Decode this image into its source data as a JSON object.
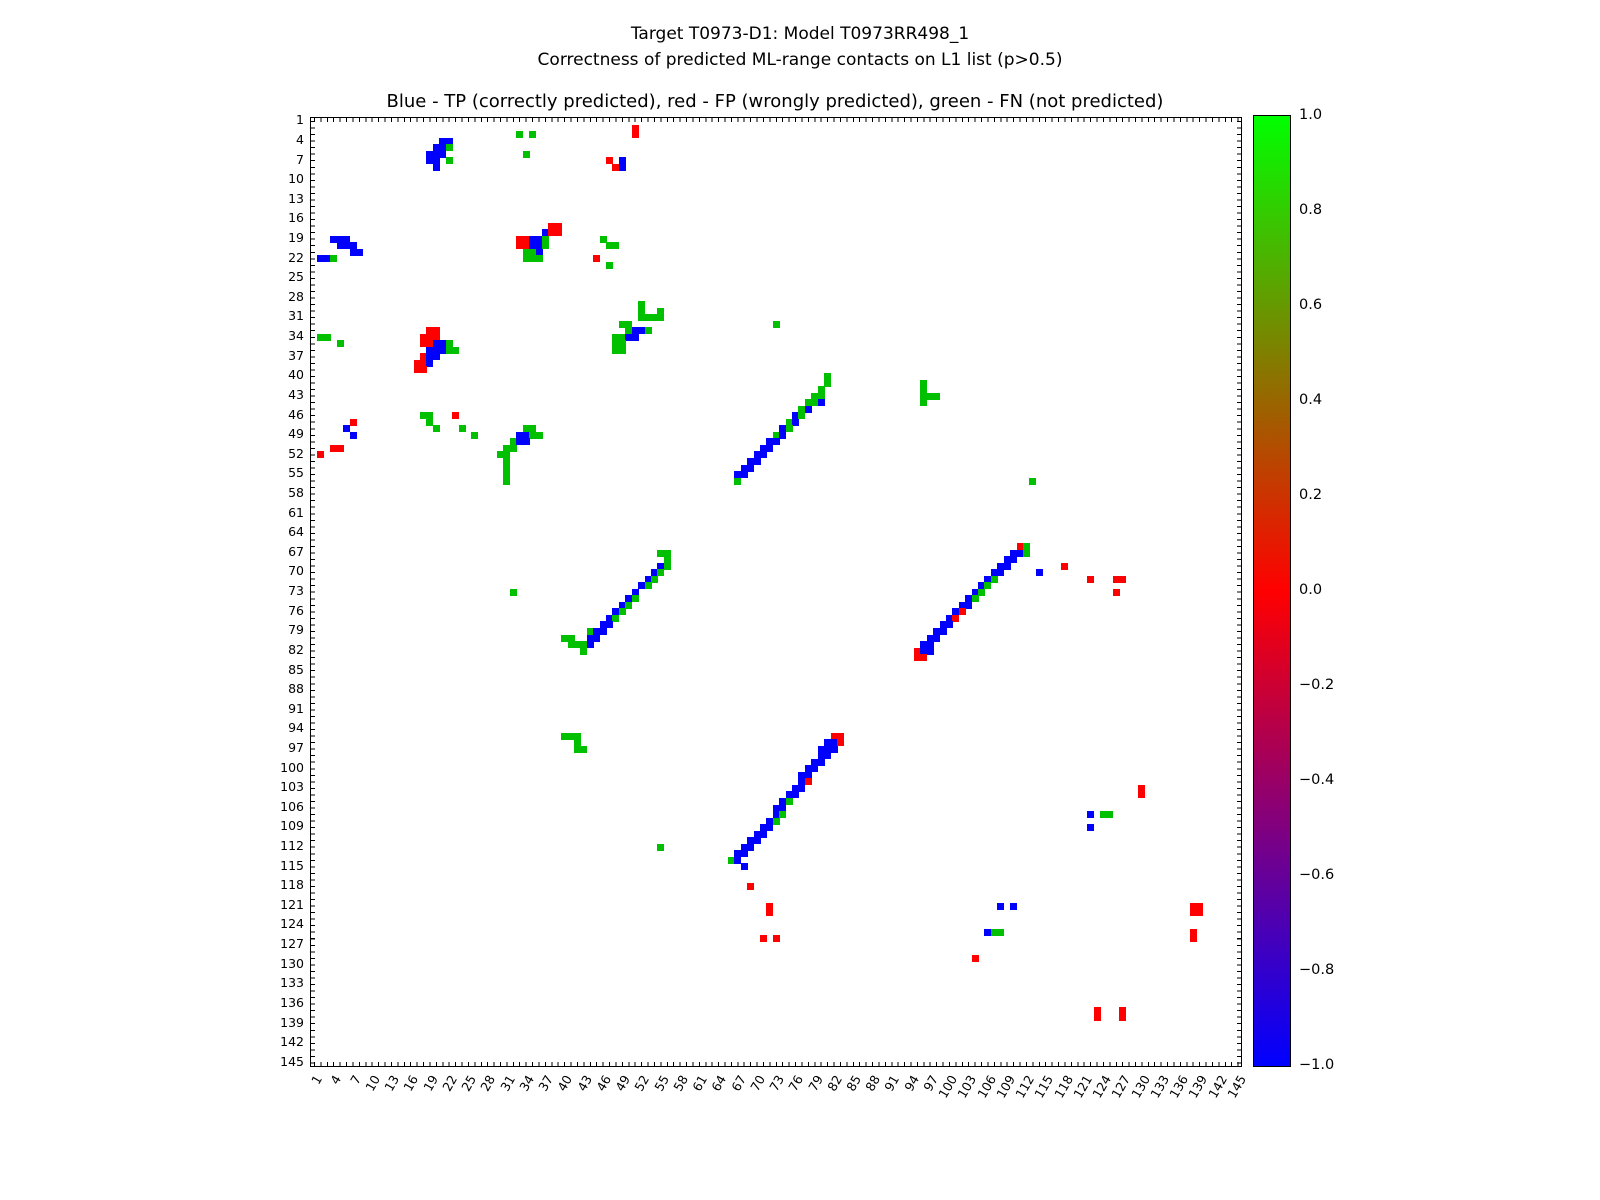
{
  "figure": {
    "suptitle_line1": "Target T0973-D1: Model T0973RR498_1",
    "suptitle_line2": "Correctness of predicted ML-range contacts on L1 list (p>0.5)"
  },
  "chart_data": {
    "type": "heatmap",
    "title": "Blue - TP (correctly predicted), red - FP (wrongly predicted), green - FN (not predicted)",
    "xlabel": "",
    "ylabel": "",
    "x_range": [
      1,
      145
    ],
    "y_range": [
      1,
      145
    ],
    "tick_step": 3,
    "tick_labels": [
      1,
      4,
      7,
      10,
      13,
      16,
      19,
      22,
      25,
      28,
      31,
      34,
      37,
      40,
      43,
      46,
      49,
      52,
      55,
      58,
      61,
      64,
      67,
      70,
      73,
      76,
      79,
      82,
      85,
      88,
      91,
      94,
      97,
      100,
      103,
      106,
      109,
      112,
      115,
      118,
      121,
      124,
      127,
      130,
      133,
      136,
      139,
      142,
      145
    ],
    "grid": false,
    "legend_position": "title",
    "classes": {
      "TP": {
        "label": "correctly predicted",
        "color": "#0000ff"
      },
      "FP": {
        "label": "wrongly predicted",
        "color": "#ff0000"
      },
      "FN": {
        "label": "not predicted",
        "color": "#00c000"
      }
    },
    "colorbar": {
      "min": -1.0,
      "max": 1.0,
      "tick_values": [
        1.0,
        0.8,
        0.6,
        0.4,
        0.2,
        0.0,
        -0.2,
        -0.4,
        -0.6,
        -0.8,
        -1.0
      ],
      "tick_labels": [
        "1.0",
        "0.8",
        "0.6",
        "0.4",
        "0.2",
        "0.0",
        "−0.2",
        "−0.4",
        "−0.6",
        "−0.8",
        "−1.0"
      ],
      "gradient": [
        "#00ff00",
        "#ff0000",
        "#0000ff"
      ]
    },
    "cells": [
      [
        2,
        51,
        "FP"
      ],
      [
        3,
        51,
        "FP"
      ],
      [
        3,
        33,
        "FN"
      ],
      [
        3,
        35,
        "FN"
      ],
      [
        4,
        21,
        "TP"
      ],
      [
        4,
        22,
        "TP"
      ],
      [
        5,
        20,
        "TP"
      ],
      [
        5,
        21,
        "TP"
      ],
      [
        5,
        22,
        "FN"
      ],
      [
        6,
        19,
        "TP"
      ],
      [
        6,
        20,
        "TP"
      ],
      [
        6,
        21,
        "TP"
      ],
      [
        6,
        34,
        "FN"
      ],
      [
        7,
        19,
        "TP"
      ],
      [
        7,
        20,
        "TP"
      ],
      [
        7,
        22,
        "FN"
      ],
      [
        7,
        47,
        "FP"
      ],
      [
        7,
        49,
        "TP"
      ],
      [
        8,
        20,
        "TP"
      ],
      [
        8,
        48,
        "FP"
      ],
      [
        8,
        49,
        "TP"
      ],
      [
        17,
        38,
        "FP"
      ],
      [
        17,
        39,
        "FP"
      ],
      [
        18,
        37,
        "TP"
      ],
      [
        18,
        38,
        "FP"
      ],
      [
        18,
        39,
        "FP"
      ],
      [
        19,
        4,
        "TP"
      ],
      [
        19,
        5,
        "TP"
      ],
      [
        19,
        6,
        "TP"
      ],
      [
        19,
        33,
        "FP"
      ],
      [
        19,
        34,
        "FP"
      ],
      [
        19,
        35,
        "TP"
      ],
      [
        19,
        36,
        "TP"
      ],
      [
        19,
        37,
        "FN"
      ],
      [
        19,
        46,
        "FN"
      ],
      [
        20,
        5,
        "TP"
      ],
      [
        20,
        6,
        "TP"
      ],
      [
        20,
        7,
        "TP"
      ],
      [
        20,
        33,
        "FP"
      ],
      [
        20,
        34,
        "FP"
      ],
      [
        20,
        35,
        "TP"
      ],
      [
        20,
        36,
        "TP"
      ],
      [
        20,
        37,
        "FN"
      ],
      [
        20,
        47,
        "FN"
      ],
      [
        20,
        48,
        "FN"
      ],
      [
        21,
        7,
        "TP"
      ],
      [
        21,
        8,
        "TP"
      ],
      [
        21,
        34,
        "FN"
      ],
      [
        21,
        35,
        "FN"
      ],
      [
        21,
        36,
        "TP"
      ],
      [
        22,
        2,
        "TP"
      ],
      [
        22,
        3,
        "TP"
      ],
      [
        22,
        4,
        "FN"
      ],
      [
        22,
        34,
        "FN"
      ],
      [
        22,
        35,
        "FN"
      ],
      [
        22,
        36,
        "FN"
      ],
      [
        22,
        45,
        "FP"
      ],
      [
        23,
        47,
        "FN"
      ],
      [
        29,
        52,
        "FN"
      ],
      [
        30,
        52,
        "FN"
      ],
      [
        30,
        55,
        "FN"
      ],
      [
        31,
        52,
        "FN"
      ],
      [
        31,
        53,
        "FN"
      ],
      [
        31,
        54,
        "FN"
      ],
      [
        31,
        55,
        "FN"
      ],
      [
        32,
        49,
        "FN"
      ],
      [
        32,
        50,
        "FN"
      ],
      [
        32,
        73,
        "FN"
      ],
      [
        33,
        19,
        "FP"
      ],
      [
        33,
        20,
        "FP"
      ],
      [
        33,
        50,
        "FN"
      ],
      [
        33,
        51,
        "TP"
      ],
      [
        33,
        52,
        "TP"
      ],
      [
        33,
        53,
        "FN"
      ],
      [
        34,
        2,
        "FN"
      ],
      [
        34,
        3,
        "FN"
      ],
      [
        34,
        18,
        "FP"
      ],
      [
        34,
        19,
        "FP"
      ],
      [
        34,
        20,
        "FP"
      ],
      [
        34,
        48,
        "FN"
      ],
      [
        34,
        49,
        "FN"
      ],
      [
        34,
        50,
        "TP"
      ],
      [
        34,
        51,
        "TP"
      ],
      [
        35,
        5,
        "FN"
      ],
      [
        35,
        18,
        "FP"
      ],
      [
        35,
        19,
        "FP"
      ],
      [
        35,
        20,
        "TP"
      ],
      [
        35,
        21,
        "TP"
      ],
      [
        35,
        22,
        "FN"
      ],
      [
        35,
        48,
        "FN"
      ],
      [
        35,
        49,
        "FN"
      ],
      [
        36,
        19,
        "TP"
      ],
      [
        36,
        20,
        "TP"
      ],
      [
        36,
        21,
        "TP"
      ],
      [
        36,
        22,
        "FN"
      ],
      [
        36,
        23,
        "FN"
      ],
      [
        36,
        48,
        "FN"
      ],
      [
        36,
        49,
        "FN"
      ],
      [
        37,
        18,
        "FP"
      ],
      [
        37,
        19,
        "TP"
      ],
      [
        37,
        20,
        "TP"
      ],
      [
        38,
        17,
        "FP"
      ],
      [
        38,
        18,
        "FP"
      ],
      [
        38,
        19,
        "TP"
      ],
      [
        39,
        17,
        "FP"
      ],
      [
        39,
        18,
        "FP"
      ],
      [
        40,
        81,
        "FN"
      ],
      [
        41,
        81,
        "FN"
      ],
      [
        41,
        96,
        "FN"
      ],
      [
        42,
        80,
        "FN"
      ],
      [
        42,
        96,
        "FN"
      ],
      [
        43,
        79,
        "FN"
      ],
      [
        43,
        80,
        "FN"
      ],
      [
        43,
        96,
        "FN"
      ],
      [
        43,
        97,
        "FN"
      ],
      [
        43,
        98,
        "FN"
      ],
      [
        44,
        78,
        "FN"
      ],
      [
        44,
        79,
        "FN"
      ],
      [
        44,
        80,
        "TP"
      ],
      [
        44,
        96,
        "FN"
      ],
      [
        45,
        77,
        "FN"
      ],
      [
        45,
        78,
        "TP"
      ],
      [
        46,
        18,
        "FN"
      ],
      [
        46,
        19,
        "FN"
      ],
      [
        46,
        23,
        "FP"
      ],
      [
        46,
        76,
        "TP"
      ],
      [
        46,
        77,
        "FN"
      ],
      [
        47,
        7,
        "FP"
      ],
      [
        47,
        19,
        "FN"
      ],
      [
        47,
        75,
        "FN"
      ],
      [
        47,
        76,
        "TP"
      ],
      [
        48,
        6,
        "TP"
      ],
      [
        48,
        20,
        "FN"
      ],
      [
        48,
        24,
        "FN"
      ],
      [
        48,
        34,
        "FN"
      ],
      [
        48,
        35,
        "FN"
      ],
      [
        48,
        74,
        "TP"
      ],
      [
        48,
        75,
        "FN"
      ],
      [
        49,
        7,
        "TP"
      ],
      [
        49,
        26,
        "FN"
      ],
      [
        49,
        33,
        "TP"
      ],
      [
        49,
        34,
        "TP"
      ],
      [
        49,
        35,
        "FN"
      ],
      [
        49,
        36,
        "FN"
      ],
      [
        49,
        73,
        "FN"
      ],
      [
        49,
        74,
        "TP"
      ],
      [
        50,
        32,
        "FN"
      ],
      [
        50,
        33,
        "TP"
      ],
      [
        50,
        34,
        "TP"
      ],
      [
        50,
        72,
        "TP"
      ],
      [
        50,
        73,
        "TP"
      ],
      [
        51,
        4,
        "FP"
      ],
      [
        51,
        5,
        "FP"
      ],
      [
        51,
        31,
        "FN"
      ],
      [
        51,
        32,
        "FN"
      ],
      [
        51,
        71,
        "TP"
      ],
      [
        51,
        72,
        "TP"
      ],
      [
        52,
        2,
        "FP"
      ],
      [
        52,
        30,
        "FN"
      ],
      [
        52,
        31,
        "FN"
      ],
      [
        52,
        70,
        "TP"
      ],
      [
        52,
        71,
        "TP"
      ],
      [
        53,
        31,
        "FN"
      ],
      [
        53,
        69,
        "TP"
      ],
      [
        53,
        70,
        "TP"
      ],
      [
        54,
        31,
        "FN"
      ],
      [
        54,
        68,
        "TP"
      ],
      [
        54,
        69,
        "TP"
      ],
      [
        55,
        31,
        "FN"
      ],
      [
        55,
        67,
        "TP"
      ],
      [
        55,
        68,
        "TP"
      ],
      [
        56,
        31,
        "FN"
      ],
      [
        56,
        67,
        "FN"
      ],
      [
        56,
        113,
        "FN"
      ],
      [
        66,
        111,
        "FP"
      ],
      [
        66,
        112,
        "FN"
      ],
      [
        67,
        55,
        "FN"
      ],
      [
        67,
        56,
        "FN"
      ],
      [
        67,
        110,
        "TP"
      ],
      [
        67,
        111,
        "TP"
      ],
      [
        67,
        112,
        "FN"
      ],
      [
        68,
        56,
        "FN"
      ],
      [
        68,
        109,
        "TP"
      ],
      [
        68,
        110,
        "TP"
      ],
      [
        69,
        55,
        "TP"
      ],
      [
        69,
        56,
        "FN"
      ],
      [
        69,
        108,
        "TP"
      ],
      [
        69,
        109,
        "TP"
      ],
      [
        69,
        118,
        "FP"
      ],
      [
        70,
        54,
        "TP"
      ],
      [
        70,
        55,
        "FN"
      ],
      [
        70,
        107,
        "TP"
      ],
      [
        70,
        108,
        "TP"
      ],
      [
        70,
        114,
        "TP"
      ],
      [
        71,
        53,
        "TP"
      ],
      [
        71,
        54,
        "FN"
      ],
      [
        71,
        106,
        "TP"
      ],
      [
        71,
        107,
        "FN"
      ],
      [
        71,
        122,
        "FP"
      ],
      [
        71,
        126,
        "FP"
      ],
      [
        71,
        127,
        "FP"
      ],
      [
        72,
        52,
        "TP"
      ],
      [
        72,
        53,
        "FN"
      ],
      [
        72,
        105,
        "TP"
      ],
      [
        72,
        106,
        "FN"
      ],
      [
        73,
        32,
        "FN"
      ],
      [
        73,
        51,
        "TP"
      ],
      [
        73,
        104,
        "TP"
      ],
      [
        73,
        105,
        "FN"
      ],
      [
        73,
        126,
        "FP"
      ],
      [
        74,
        50,
        "TP"
      ],
      [
        74,
        51,
        "FN"
      ],
      [
        74,
        103,
        "TP"
      ],
      [
        74,
        104,
        "FN"
      ],
      [
        75,
        49,
        "TP"
      ],
      [
        75,
        50,
        "FN"
      ],
      [
        75,
        102,
        "TP"
      ],
      [
        75,
        103,
        "TP"
      ],
      [
        76,
        48,
        "TP"
      ],
      [
        76,
        49,
        "FN"
      ],
      [
        76,
        101,
        "TP"
      ],
      [
        76,
        102,
        "FP"
      ],
      [
        77,
        47,
        "TP"
      ],
      [
        77,
        48,
        "FN"
      ],
      [
        77,
        100,
        "TP"
      ],
      [
        77,
        101,
        "FP"
      ],
      [
        78,
        46,
        "TP"
      ],
      [
        78,
        47,
        "TP"
      ],
      [
        78,
        99,
        "TP"
      ],
      [
        78,
        100,
        "TP"
      ],
      [
        79,
        44,
        "FN"
      ],
      [
        79,
        45,
        "TP"
      ],
      [
        79,
        46,
        "TP"
      ],
      [
        79,
        98,
        "TP"
      ],
      [
        79,
        99,
        "TP"
      ],
      [
        80,
        40,
        "FN"
      ],
      [
        80,
        41,
        "FN"
      ],
      [
        80,
        44,
        "TP"
      ],
      [
        80,
        45,
        "TP"
      ],
      [
        80,
        97,
        "TP"
      ],
      [
        80,
        98,
        "TP"
      ],
      [
        81,
        41,
        "FN"
      ],
      [
        81,
        42,
        "FN"
      ],
      [
        81,
        43,
        "FN"
      ],
      [
        81,
        44,
        "TP"
      ],
      [
        81,
        96,
        "TP"
      ],
      [
        81,
        97,
        "TP"
      ],
      [
        82,
        43,
        "FN"
      ],
      [
        82,
        95,
        "FP"
      ],
      [
        82,
        96,
        "TP"
      ],
      [
        82,
        97,
        "TP"
      ],
      [
        83,
        95,
        "FP"
      ],
      [
        83,
        96,
        "FP"
      ],
      [
        95,
        40,
        "FN"
      ],
      [
        95,
        41,
        "FN"
      ],
      [
        95,
        42,
        "FN"
      ],
      [
        95,
        82,
        "FP"
      ],
      [
        95,
        83,
        "FP"
      ],
      [
        96,
        42,
        "FN"
      ],
      [
        96,
        81,
        "TP"
      ],
      [
        96,
        82,
        "TP"
      ],
      [
        96,
        83,
        "FP"
      ],
      [
        97,
        42,
        "FN"
      ],
      [
        97,
        43,
        "FN"
      ],
      [
        97,
        80,
        "TP"
      ],
      [
        97,
        81,
        "TP"
      ],
      [
        97,
        82,
        "TP"
      ],
      [
        98,
        80,
        "TP"
      ],
      [
        98,
        81,
        "TP"
      ],
      [
        99,
        79,
        "TP"
      ],
      [
        99,
        80,
        "TP"
      ],
      [
        100,
        78,
        "TP"
      ],
      [
        100,
        79,
        "TP"
      ],
      [
        101,
        77,
        "TP"
      ],
      [
        101,
        78,
        "TP"
      ],
      [
        102,
        77,
        "TP"
      ],
      [
        102,
        78,
        "FP"
      ],
      [
        103,
        76,
        "TP"
      ],
      [
        103,
        77,
        "TP"
      ],
      [
        103,
        130,
        "FP"
      ],
      [
        104,
        75,
        "TP"
      ],
      [
        104,
        76,
        "TP"
      ],
      [
        104,
        130,
        "FP"
      ],
      [
        105,
        74,
        "TP"
      ],
      [
        105,
        75,
        "FN"
      ],
      [
        106,
        73,
        "TP"
      ],
      [
        106,
        74,
        "TP"
      ],
      [
        107,
        73,
        "TP"
      ],
      [
        107,
        74,
        "FN"
      ],
      [
        107,
        122,
        "TP"
      ],
      [
        107,
        124,
        "FN"
      ],
      [
        107,
        125,
        "FN"
      ],
      [
        108,
        72,
        "TP"
      ],
      [
        108,
        73,
        "FN"
      ],
      [
        109,
        71,
        "TP"
      ],
      [
        109,
        72,
        "TP"
      ],
      [
        109,
        122,
        "TP"
      ],
      [
        110,
        70,
        "TP"
      ],
      [
        110,
        71,
        "TP"
      ],
      [
        111,
        69,
        "TP"
      ],
      [
        111,
        70,
        "TP"
      ],
      [
        112,
        55,
        "FN"
      ],
      [
        112,
        68,
        "TP"
      ],
      [
        112,
        69,
        "TP"
      ],
      [
        113,
        67,
        "TP"
      ],
      [
        113,
        68,
        "TP"
      ],
      [
        114,
        66,
        "FN"
      ],
      [
        114,
        67,
        "TP"
      ],
      [
        115,
        68,
        "TP"
      ],
      [
        118,
        69,
        "FP"
      ],
      [
        121,
        72,
        "FP"
      ],
      [
        121,
        108,
        "TP"
      ],
      [
        121,
        110,
        "TP"
      ],
      [
        121,
        138,
        "FP"
      ],
      [
        121,
        139,
        "FP"
      ],
      [
        122,
        72,
        "FP"
      ],
      [
        122,
        138,
        "FP"
      ],
      [
        122,
        139,
        "FP"
      ],
      [
        125,
        106,
        "TP"
      ],
      [
        125,
        107,
        "FN"
      ],
      [
        125,
        108,
        "FN"
      ],
      [
        125,
        138,
        "FP"
      ],
      [
        126,
        71,
        "FP"
      ],
      [
        126,
        73,
        "FP"
      ],
      [
        126,
        138,
        "FP"
      ],
      [
        129,
        104,
        "FP"
      ],
      [
        137,
        123,
        "FP"
      ],
      [
        137,
        127,
        "FP"
      ],
      [
        138,
        123,
        "FP"
      ],
      [
        138,
        127,
        "FP"
      ]
    ]
  }
}
